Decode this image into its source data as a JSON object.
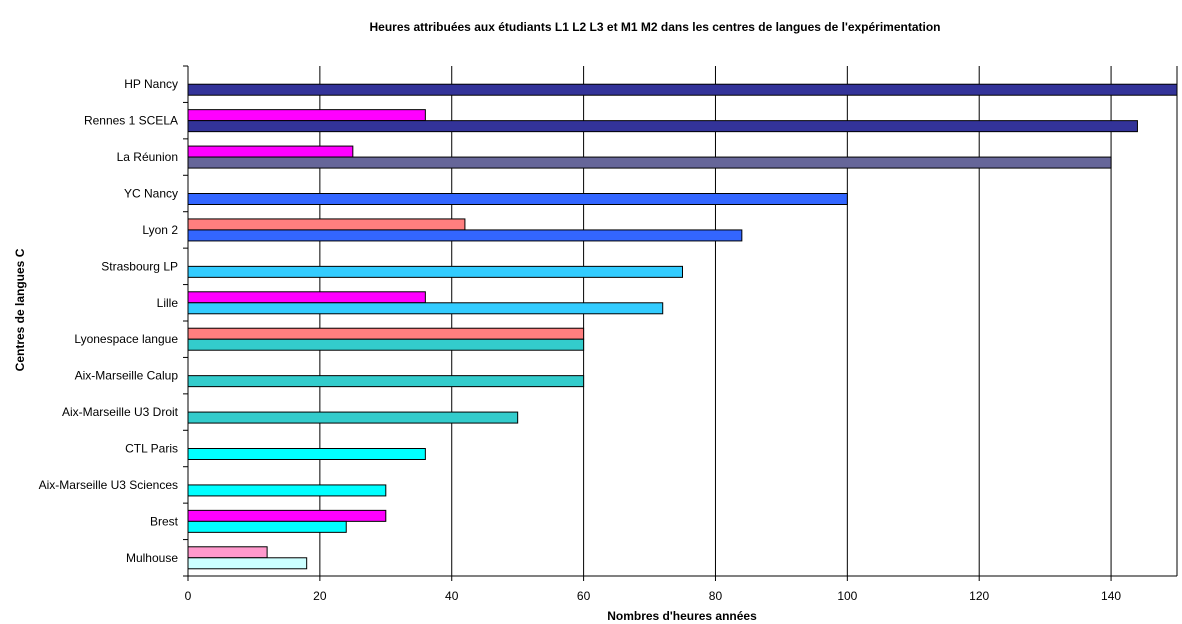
{
  "chart_data": {
    "type": "bar",
    "orientation": "horizontal",
    "title": "Heures attribuées aux étudiants L1 L2 L3 et M1 M2 dans les centres de langues de l'expérimentation",
    "xlabel": "Nombres d'heures années",
    "ylabel": "Centres de langues C",
    "xlim": [
      0,
      150
    ],
    "xticks": [
      0,
      20,
      40,
      60,
      80,
      100,
      120,
      140
    ],
    "grid": "vertical",
    "legend": "none",
    "categories": [
      "HP Nancy",
      "Rennes 1 SCELA",
      "La Réunion",
      "YC Nancy",
      "Lyon 2",
      "Strasbourg LP",
      "Lille",
      "Lyonespace langue",
      "Aix-Marseille Calup",
      "Aix-Marseille U3 Droit",
      "CTL Paris",
      "Aix-Marseille U3 Sciences",
      "Brest",
      "Mulhouse"
    ],
    "series": [
      {
        "values": [
          null,
          36,
          25,
          null,
          42,
          null,
          36,
          60,
          null,
          null,
          null,
          null,
          30,
          12
        ],
        "colors": [
          null,
          "#ff00ff",
          "#ff00ff",
          null,
          "#ff7f7f",
          null,
          "#ff00ff",
          "#ff7f7f",
          null,
          null,
          null,
          null,
          "#ff00ff",
          "#ff99cc"
        ]
      },
      {
        "values": [
          150,
          144,
          140,
          100,
          84,
          75,
          72,
          60,
          60,
          50,
          36,
          30,
          24,
          18
        ],
        "colors": [
          "#333399",
          "#333399",
          "#666699",
          "#3366ff",
          "#3366ff",
          "#33ccff",
          "#33ccff",
          "#33cccc",
          "#33cccc",
          "#33cccc",
          "#00ffff",
          "#00ffff",
          "#00ffff",
          "#ccffff"
        ]
      }
    ]
  }
}
